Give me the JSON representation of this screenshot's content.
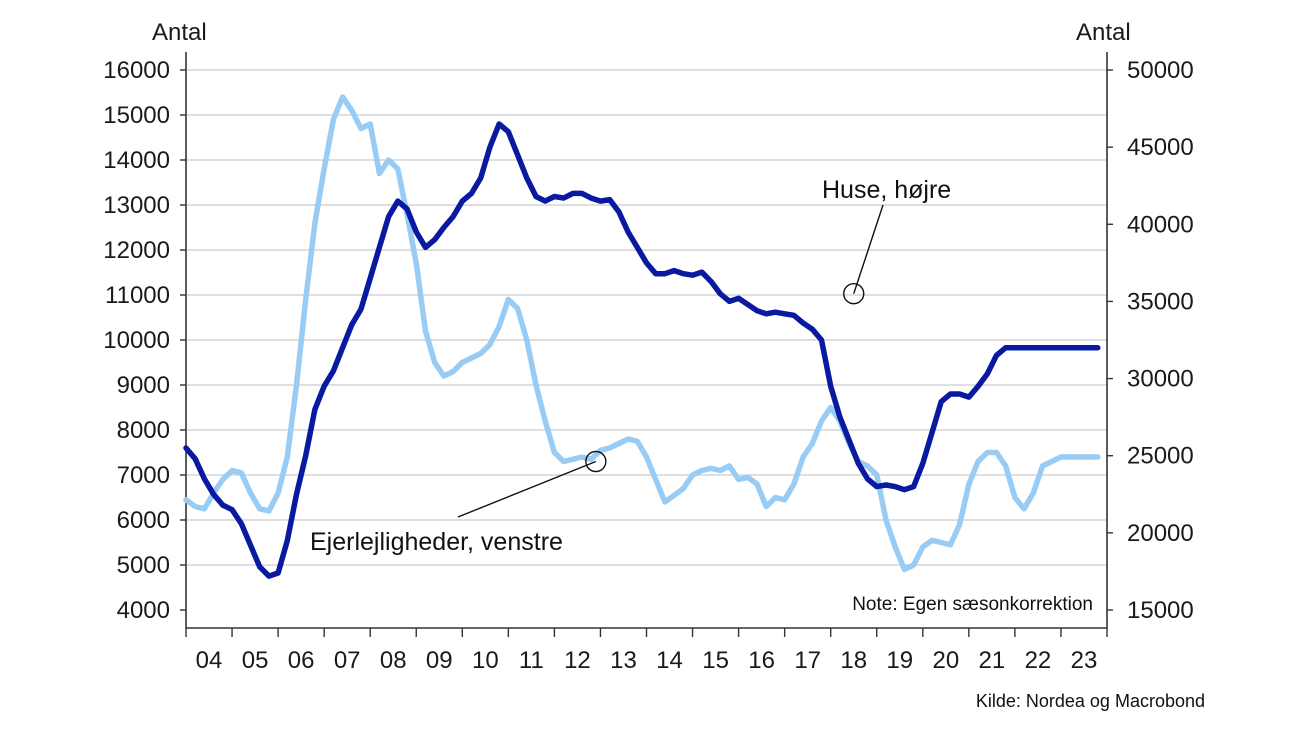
{
  "chart_data": {
    "type": "line",
    "y_left_label": "Antal",
    "y_right_label": "Antal",
    "ylim_left": [
      4000,
      16000
    ],
    "ylim_right": [
      15000,
      50000
    ],
    "yticks_left": [
      4000,
      5000,
      6000,
      7000,
      8000,
      9000,
      10000,
      11000,
      12000,
      13000,
      14000,
      15000,
      16000
    ],
    "yticks_right": [
      15000,
      20000,
      25000,
      30000,
      35000,
      40000,
      45000,
      50000
    ],
    "xlim": [
      2004.0,
      2024.0
    ],
    "x_tick_labels": [
      "04",
      "05",
      "06",
      "07",
      "08",
      "09",
      "10",
      "11",
      "12",
      "13",
      "14",
      "15",
      "16",
      "17",
      "18",
      "19",
      "20",
      "21",
      "22",
      "23"
    ],
    "grid": true,
    "note": "Note: Egen sæsonkorrektion",
    "source": "Kilde: Nordea og Macrobond",
    "colors": {
      "ejerlejligheder": "#99ccf5",
      "huse": "#0a1aa0",
      "grid": "#cccccc",
      "axis": "#333333"
    },
    "series": [
      {
        "name": "Ejerlejligheder, venstre",
        "axis": "left",
        "x": [
          2004.0,
          2004.2,
          2004.4,
          2004.6,
          2004.8,
          2005.0,
          2005.2,
          2005.4,
          2005.6,
          2005.8,
          2006.0,
          2006.2,
          2006.4,
          2006.6,
          2006.8,
          2007.0,
          2007.2,
          2007.4,
          2007.6,
          2007.8,
          2008.0,
          2008.2,
          2008.4,
          2008.6,
          2008.8,
          2009.0,
          2009.2,
          2009.4,
          2009.6,
          2009.8,
          2010.0,
          2010.2,
          2010.4,
          2010.6,
          2010.8,
          2011.0,
          2011.2,
          2011.4,
          2011.6,
          2011.8,
          2012.0,
          2012.2,
          2012.4,
          2012.6,
          2012.8,
          2013.0,
          2013.2,
          2013.4,
          2013.6,
          2013.8,
          2014.0,
          2014.2,
          2014.4,
          2014.6,
          2014.8,
          2015.0,
          2015.2,
          2015.4,
          2015.6,
          2015.8,
          2016.0,
          2016.2,
          2016.4,
          2016.6,
          2016.8,
          2017.0,
          2017.2,
          2017.4,
          2017.6,
          2017.8,
          2018.0,
          2018.2,
          2018.4,
          2018.6,
          2018.8,
          2019.0,
          2019.2,
          2019.4,
          2019.6,
          2019.8,
          2020.0,
          2020.2,
          2020.4,
          2020.6,
          2020.8,
          2021.0,
          2021.2,
          2021.4,
          2021.6,
          2021.8,
          2022.0,
          2022.2,
          2022.4,
          2022.6,
          2022.8,
          2023.0,
          2023.2,
          2023.4,
          2023.6,
          2023.8
        ],
        "values": [
          6450,
          6300,
          6250,
          6600,
          6900,
          7100,
          7050,
          6600,
          6250,
          6200,
          6600,
          7400,
          9000,
          10900,
          12600,
          13800,
          14900,
          15400,
          15100,
          14700,
          14800,
          13700,
          14000,
          13800,
          12800,
          11700,
          10200,
          9500,
          9200,
          9300,
          9500,
          9600,
          9700,
          9900,
          10300,
          10900,
          10700,
          10000,
          9000,
          8200,
          7500,
          7300,
          7350,
          7400,
          7350,
          7550,
          7600,
          7700,
          7800,
          7750,
          7400,
          6900,
          6400,
          6550,
          6700,
          7000,
          7100,
          7150,
          7100,
          7200,
          6900,
          6950,
          6800,
          6300,
          6500,
          6450,
          6800,
          7400,
          7700,
          8200,
          8500,
          8200,
          7700,
          7300,
          7200,
          7000,
          6000,
          5400,
          4900,
          5000,
          5400,
          5550,
          5500,
          5450,
          5900,
          6800,
          7300,
          7500,
          7500,
          7200,
          6500,
          6250,
          6600,
          7200,
          7300,
          7400,
          7400,
          7400,
          7400,
          7400
        ]
      },
      {
        "name": "Huse, højre",
        "axis": "right",
        "x": [
          2004.0,
          2004.2,
          2004.4,
          2004.6,
          2004.8,
          2005.0,
          2005.2,
          2005.4,
          2005.6,
          2005.8,
          2006.0,
          2006.2,
          2006.4,
          2006.6,
          2006.8,
          2007.0,
          2007.2,
          2007.4,
          2007.6,
          2007.8,
          2008.0,
          2008.2,
          2008.4,
          2008.6,
          2008.8,
          2009.0,
          2009.2,
          2009.4,
          2009.6,
          2009.8,
          2010.0,
          2010.2,
          2010.4,
          2010.6,
          2010.8,
          2011.0,
          2011.2,
          2011.4,
          2011.6,
          2011.8,
          2012.0,
          2012.2,
          2012.4,
          2012.6,
          2012.8,
          2013.0,
          2013.2,
          2013.4,
          2013.6,
          2013.8,
          2014.0,
          2014.2,
          2014.4,
          2014.6,
          2014.8,
          2015.0,
          2015.2,
          2015.4,
          2015.6,
          2015.8,
          2016.0,
          2016.2,
          2016.4,
          2016.6,
          2016.8,
          2017.0,
          2017.2,
          2017.4,
          2017.6,
          2017.8,
          2018.0,
          2018.2,
          2018.4,
          2018.6,
          2018.8,
          2019.0,
          2019.2,
          2019.4,
          2019.6,
          2019.8,
          2020.0,
          2020.2,
          2020.4,
          2020.6,
          2020.8,
          2021.0,
          2021.2,
          2021.4,
          2021.6,
          2021.8,
          2022.0,
          2022.2,
          2022.4,
          2022.6,
          2022.8,
          2023.0,
          2023.2,
          2023.4,
          2023.6,
          2023.8
        ],
        "values": [
          25500,
          24800,
          23500,
          22500,
          21800,
          21500,
          20600,
          19200,
          17800,
          17200,
          17400,
          19500,
          22500,
          25000,
          28000,
          29500,
          30500,
          32000,
          33500,
          34500,
          36500,
          38500,
          40500,
          41500,
          41000,
          39500,
          38500,
          39000,
          39800,
          40500,
          41500,
          42000,
          43000,
          45000,
          46500,
          46000,
          44500,
          43000,
          41800,
          41500,
          41800,
          41700,
          42000,
          42000,
          41700,
          41500,
          41600,
          40800,
          39500,
          38500,
          37500,
          36800,
          36800,
          37000,
          36800,
          36700,
          36900,
          36300,
          35500,
          35000,
          35200,
          34800,
          34400,
          34200,
          34300,
          34200,
          34100,
          33600,
          33200,
          32500,
          29500,
          27500,
          26000,
          24500,
          23500,
          23000,
          23100,
          23000,
          22800,
          23000,
          24500,
          26500,
          28500,
          29000,
          29000,
          28800,
          29500,
          30300,
          31500,
          32000,
          32000,
          32000,
          32000,
          32000,
          32000,
          32000,
          32000,
          32000,
          32000,
          32000
        ]
      }
    ],
    "annotations": [
      {
        "text": "Huse, højre",
        "series": 1,
        "x": 2018.5,
        "y": 35500
      },
      {
        "text": "Ejerlejligheder, venstre",
        "series": 0,
        "x": 2012.9,
        "y": 7300
      }
    ]
  }
}
